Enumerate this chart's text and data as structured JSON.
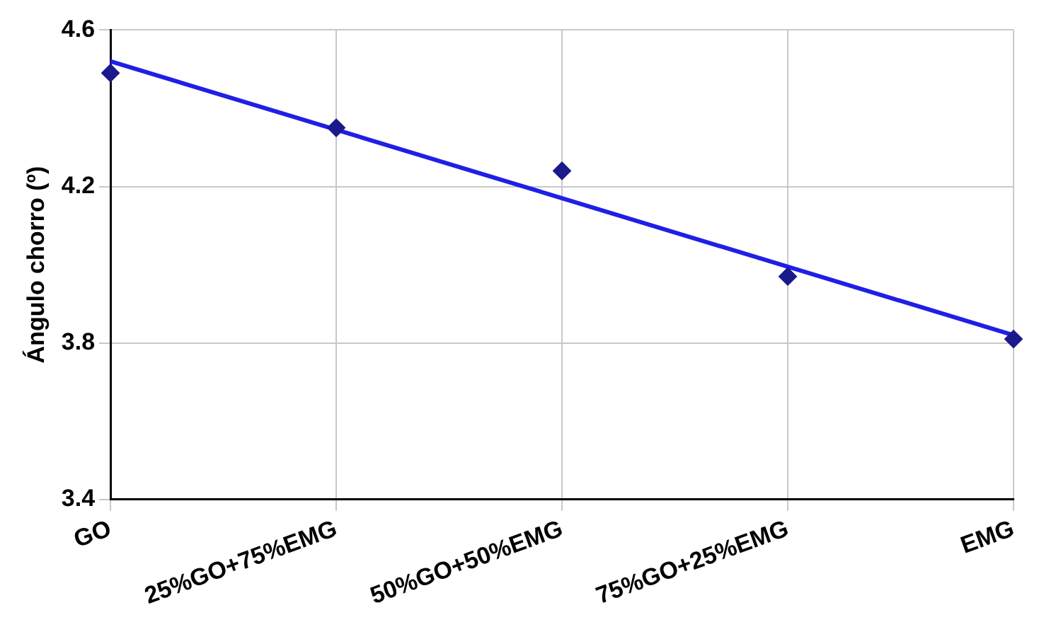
{
  "chart_data": {
    "type": "scatter",
    "ylabel": "Ángulo chorro (º)",
    "categories": [
      "GO",
      "25%GO+75%EMG",
      "50%GO+50%EMG",
      "75%GO+25%EMG",
      "EMG"
    ],
    "series": [
      {
        "type": "scatter",
        "color": "#1a1a8c",
        "marker": "diamond",
        "values": [
          4.49,
          4.35,
          4.24,
          3.97,
          3.81
        ]
      },
      {
        "type": "line",
        "color": "#1f1fe6",
        "x": [
          "GO",
          "EMG"
        ],
        "values": [
          4.52,
          3.82
        ]
      }
    ],
    "ylim": [
      3.4,
      4.6
    ],
    "yticks": [
      3.4,
      3.8,
      4.2,
      4.6
    ],
    "grid": true,
    "line_style": "solid",
    "legend": false
  }
}
